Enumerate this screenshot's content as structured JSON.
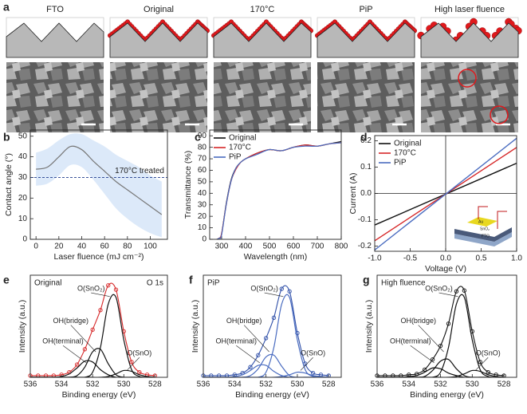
{
  "panel_a": {
    "label": "a",
    "columns": [
      "FTO",
      "Original",
      "170°C",
      "PiP",
      "High laser fluence"
    ]
  },
  "chart_data": [
    {
      "type": "line",
      "panel": "b",
      "xlabel": "Laser fluence (mJ cm⁻²)",
      "ylabel": "Contact angle (°)",
      "x": [
        0,
        10,
        20,
        30,
        40,
        50,
        60,
        70,
        80,
        90,
        100,
        110
      ],
      "xlim": [
        -5,
        115
      ],
      "xticks": [
        0,
        20,
        40,
        60,
        80,
        100
      ],
      "ylim": [
        0,
        53
      ],
      "yticks": [
        0,
        10,
        20,
        30,
        40,
        50
      ],
      "band": {
        "color": "#dce9f9",
        "upper": [
          42,
          44,
          48,
          51,
          51,
          48,
          45,
          41,
          38,
          35,
          31,
          28
        ],
        "lower": [
          26,
          27,
          31,
          36,
          35,
          29,
          22,
          15,
          10,
          6,
          3,
          1
        ]
      },
      "series": [
        {
          "color": "#777777",
          "values": [
            34,
            35,
            40,
            45,
            43.5,
            38,
            33,
            28,
            24,
            20,
            16,
            12
          ]
        }
      ],
      "reference_line": {
        "value": 30,
        "label": "170°C treated",
        "color": "#1f3b8c"
      },
      "smooth": true
    },
    {
      "type": "line",
      "panel": "c",
      "xlabel": "Wavelength (nm)",
      "ylabel": "Transmittance (%)",
      "x": [
        280,
        290,
        300,
        320,
        340,
        360,
        380,
        400,
        450,
        500,
        550,
        600,
        650,
        700,
        750,
        800
      ],
      "xlim": [
        250,
        800
      ],
      "xticks": [
        300,
        400,
        500,
        600,
        700,
        800
      ],
      "ylim": [
        0,
        95
      ],
      "yticks": [
        0,
        10,
        20,
        30,
        40,
        50,
        60,
        70,
        80,
        90
      ],
      "legend": "upper left",
      "smooth": true,
      "series": [
        {
          "name": "Original",
          "color": "#111111",
          "values": [
            0,
            1,
            5,
            32,
            52,
            62,
            67,
            70,
            75,
            78,
            77,
            80,
            82,
            81,
            83,
            85
          ]
        },
        {
          "name": "170°C",
          "color": "#d62728",
          "values": [
            0,
            1,
            5,
            31,
            51,
            61,
            67,
            70,
            75,
            78,
            77,
            80,
            82,
            81,
            83,
            84
          ]
        },
        {
          "name": "PiP",
          "color": "#4a6cc0",
          "values": [
            0,
            1,
            4,
            31,
            51,
            62,
            67,
            70,
            74,
            78,
            77,
            80,
            81,
            81,
            83,
            84
          ]
        }
      ]
    },
    {
      "type": "line",
      "panel": "d",
      "xlabel": "Voltage (V)",
      "ylabel": "Current (A)",
      "x": [
        -1,
        1
      ],
      "xlim": [
        -1,
        1
      ],
      "xticks": [
        {
          "value": -1,
          "label": "-1.0"
        },
        -0.5,
        {
          "value": 0,
          "label": "0.0"
        },
        0.5,
        {
          "value": 1,
          "label": "1.0"
        }
      ],
      "ylim": [
        -0.22,
        0.22
      ],
      "yticks": [
        -0.2,
        -0.1,
        {
          "value": 0,
          "label": "0.0"
        },
        0.1,
        0.2
      ],
      "legend": "upper left",
      "zero_axes": true,
      "inset_labels": [
        "Au",
        "SnO₂",
        "FTO"
      ],
      "series": [
        {
          "name": "Original",
          "color": "#111111",
          "values": [
            -0.12,
            0.115
          ]
        },
        {
          "name": "170°C",
          "color": "#d62728",
          "values": [
            -0.18,
            0.175
          ]
        },
        {
          "name": "PiP",
          "color": "#4a6cc0",
          "values": [
            -0.215,
            0.21
          ]
        }
      ]
    },
    {
      "type": "line",
      "panel": "e",
      "title": "Original",
      "annotation": "O 1s",
      "xlabel": "Binding energy (eV)",
      "ylabel": "Intensity (a.u.)",
      "x": [
        536,
        535.5,
        535,
        534.5,
        534,
        533.5,
        533,
        532.5,
        532,
        531.5,
        531,
        530.5,
        530,
        529.5,
        529,
        528.5,
        528
      ],
      "xlim": [
        536,
        527.2
      ],
      "xticks": [
        536,
        534,
        532,
        530,
        528
      ],
      "ylim": [
        0,
        120
      ],
      "smooth": true,
      "curve_labels": true,
      "series": [
        {
          "color": "#d62728",
          "marker": "circle",
          "values": [
            2,
            2,
            2,
            2,
            3,
            6,
            15,
            33,
            56,
            79,
            108,
            103,
            54,
            18,
            6,
            3,
            2
          ]
        },
        {
          "name": "O(SnO₂)",
          "color": "#111111",
          "values": [
            0,
            0,
            0,
            0,
            0,
            0,
            0,
            0,
            6,
            35,
            86,
            94,
            44,
            9,
            1,
            0,
            0
          ]
        },
        {
          "name": "OH(bridge)",
          "color": "#111111",
          "values": [
            0,
            0,
            0,
            0,
            0,
            0,
            2,
            12,
            30,
            33,
            16,
            3,
            0,
            0,
            0,
            0,
            0
          ]
        },
        {
          "name": "OH(terminal)",
          "color": "#111111",
          "values": [
            0,
            0,
            0,
            0,
            1,
            4,
            11,
            19,
            18,
            9,
            3,
            0,
            0,
            0,
            0,
            0,
            0
          ]
        },
        {
          "name": "O(SnO)",
          "color": "#111111",
          "values": [
            0,
            0,
            0,
            0,
            0,
            0,
            0,
            0,
            0,
            0,
            1,
            4,
            8,
            7,
            3,
            1,
            0
          ]
        }
      ]
    },
    {
      "type": "line",
      "panel": "f",
      "title": "PiP",
      "xlabel": "Binding energy (eV)",
      "ylabel": "Intensity (a.u.)",
      "x": [
        536,
        535.5,
        535,
        534.5,
        534,
        533.5,
        533,
        532.5,
        532,
        531.5,
        531,
        530.5,
        530,
        529.5,
        529,
        528.5,
        528
      ],
      "xlim": [
        536,
        527.2
      ],
      "xticks": [
        536,
        534,
        532,
        530,
        528
      ],
      "ylim": [
        0,
        120
      ],
      "smooth": true,
      "curve_labels": true,
      "series": [
        {
          "color": "#2f4fa8",
          "marker": "circle",
          "values": [
            2,
            2,
            2,
            2,
            3,
            5,
            12,
            26,
            46,
            70,
            104,
            101,
            52,
            16,
            5,
            3,
            2
          ]
        },
        {
          "name": "O(SnO₂)",
          "color": "#4a6cc0",
          "values": [
            0,
            0,
            0,
            0,
            0,
            0,
            0,
            0,
            6,
            35,
            86,
            94,
            44,
            9,
            1,
            0,
            0
          ]
        },
        {
          "name": "OH(bridge)",
          "color": "#4a6cc0",
          "values": [
            0,
            0,
            0,
            0,
            0,
            0,
            2,
            10,
            24,
            26,
            13,
            2,
            0,
            0,
            0,
            0,
            0
          ]
        },
        {
          "name": "OH(terminal)",
          "color": "#4a6cc0",
          "values": [
            0,
            0,
            0,
            0,
            1,
            3,
            8,
            14,
            14,
            7,
            2,
            0,
            0,
            0,
            0,
            0,
            0
          ]
        },
        {
          "name": "O(SnO)",
          "color": "#4a6cc0",
          "values": [
            0,
            0,
            0,
            0,
            0,
            0,
            0,
            0,
            0,
            0,
            1,
            3,
            6,
            5,
            2,
            1,
            0
          ]
        }
      ]
    },
    {
      "type": "line",
      "panel": "g",
      "title": "High fluence",
      "xlabel": "Binding energy (eV)",
      "ylabel": "Intensity (a.u.)",
      "x": [
        536,
        535.5,
        535,
        534.5,
        534,
        533.5,
        533,
        532.5,
        532,
        531.5,
        531,
        530.5,
        530,
        529.5,
        529,
        528.5,
        528
      ],
      "xlim": [
        536,
        527.2
      ],
      "xticks": [
        536,
        534,
        532,
        530,
        528
      ],
      "ylim": [
        0,
        120
      ],
      "smooth": true,
      "curve_labels": true,
      "series": [
        {
          "color": "#111111",
          "marker": "circle",
          "values": [
            2,
            2,
            2,
            2,
            3,
            4,
            9,
            21,
            37,
            63,
            101,
            102,
            54,
            18,
            6,
            3,
            2
          ]
        },
        {
          "name": "O(SnO₂)",
          "color": "#111111",
          "values": [
            0,
            0,
            0,
            0,
            0,
            0,
            0,
            0,
            6,
            35,
            86,
            94,
            44,
            9,
            1,
            0,
            0
          ]
        },
        {
          "name": "OH(bridge)",
          "color": "#111111",
          "values": [
            0,
            0,
            0,
            0,
            0,
            0,
            1,
            8,
            19,
            21,
            10,
            2,
            0,
            0,
            0,
            0,
            0
          ]
        },
        {
          "name": "OH(terminal)",
          "color": "#111111",
          "values": [
            0,
            0,
            0,
            0,
            1,
            2,
            6,
            11,
            10,
            5,
            2,
            0,
            0,
            0,
            0,
            0,
            0
          ]
        },
        {
          "name": "O(SnO)",
          "color": "#111111",
          "values": [
            0,
            0,
            0,
            0,
            0,
            0,
            0,
            0,
            0,
            0,
            1,
            4,
            8,
            7,
            3,
            1,
            0
          ]
        }
      ]
    }
  ]
}
